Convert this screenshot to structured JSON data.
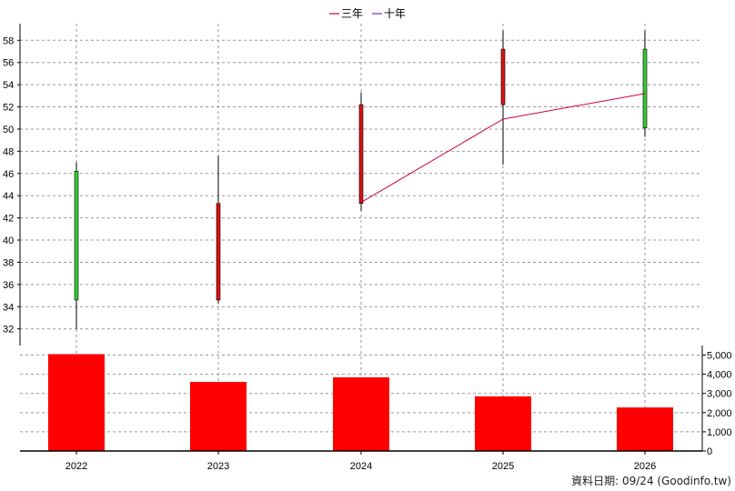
{
  "colors": {
    "up_candle": "#33cc33",
    "down_candle": "#dd1111",
    "volume_bar": "#ff0000",
    "ma3_line": "#cc0044",
    "ma10_line": "#6633cc",
    "grid": "#999999"
  },
  "footer": {
    "source_text": "資料日期: 09/24  (Goodinfo.tw)"
  },
  "chart_data": [
    {
      "type": "candlestick",
      "categories": [
        "2022",
        "2023",
        "2024",
        "2025",
        "2026"
      ],
      "ylim": [
        30.5,
        59.5
      ],
      "yticks": [
        "32",
        "34",
        "36",
        "38",
        "40",
        "42",
        "44",
        "46",
        "48",
        "50",
        "52",
        "54",
        "56",
        "58"
      ],
      "grid": true,
      "legend_position": "top-center",
      "candles": [
        {
          "x": "2022",
          "open": 34.6,
          "high": 47.0,
          "low": 32.0,
          "close": 46.2
        },
        {
          "x": "2023",
          "open": 43.3,
          "high": 47.6,
          "low": 34.3,
          "close": 34.6
        },
        {
          "x": "2024",
          "open": 52.2,
          "high": 53.3,
          "low": 42.6,
          "close": 43.3
        },
        {
          "x": "2025",
          "open": 57.2,
          "high": 58.9,
          "low": 46.8,
          "close": 52.2
        },
        {
          "x": "2026",
          "open": 50.1,
          "high": 58.9,
          "low": 49.3,
          "close": 57.2
        }
      ],
      "series": [
        {
          "name": "三年",
          "x": [
            "2024",
            "2025",
            "2026"
          ],
          "values": [
            43.4,
            50.9,
            53.2
          ]
        },
        {
          "name": "十年",
          "x": [],
          "values": []
        }
      ]
    },
    {
      "type": "bar",
      "categories": [
        "2022",
        "2023",
        "2024",
        "2025",
        "2026"
      ],
      "values": [
        5050,
        3600,
        3840,
        2850,
        2270
      ],
      "ylim": [
        0,
        5500
      ],
      "yticks": [
        "0",
        "1,000",
        "2,000",
        "3,000",
        "4,000",
        "5,000"
      ],
      "grid": true
    }
  ]
}
